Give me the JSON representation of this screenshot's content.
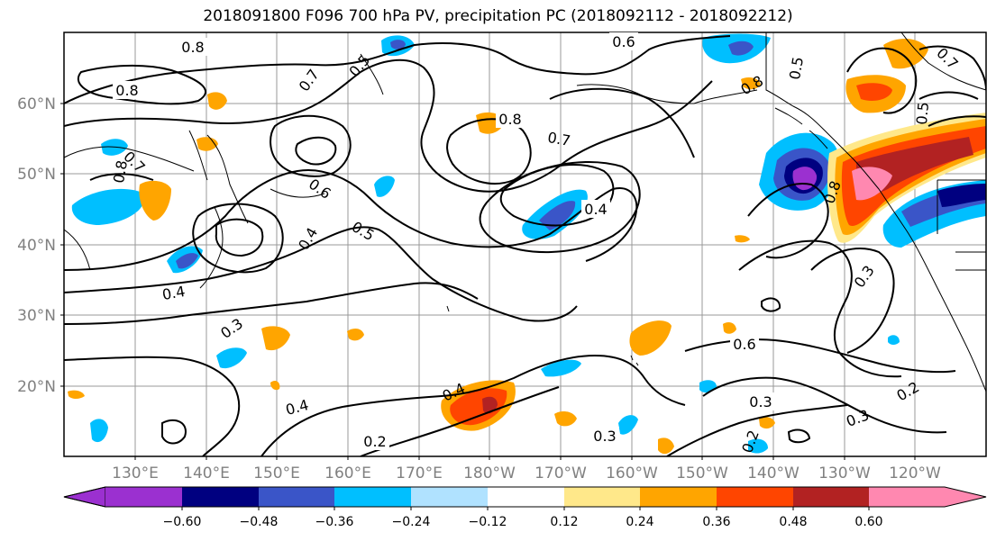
{
  "title": "2018091800 F096 700 hPa PV, precipitation PC (2018092112 - 2018092212)",
  "x_ticks": [
    "130°E",
    "140°E",
    "150°E",
    "160°E",
    "170°E",
    "180°W",
    "170°W",
    "160°W",
    "150°W",
    "140°W",
    "130°W",
    "120°W"
  ],
  "y_ticks": [
    "60°N",
    "50°N",
    "40°N",
    "30°N",
    "20°N"
  ],
  "contour_labels": [
    "0.8",
    "0.8",
    "0.7",
    "0.5",
    "0.6",
    "0.8",
    "0.7",
    "0.7",
    "0.6",
    "0.5",
    "0.4",
    "0.4",
    "0.4",
    "0.3",
    "0.4",
    "0.2",
    "0.4",
    "0.3",
    "0.6",
    "0.3",
    "0.2",
    "0.3",
    "0.8",
    "0.3",
    "0.5",
    "0.8",
    "0.2",
    "0.5",
    "0.7",
    "0.8"
  ],
  "colorbar": {
    "labels": [
      "−0.60",
      "−0.48",
      "−0.36",
      "−0.24",
      "−0.12",
      "0.12",
      "0.24",
      "0.36",
      "0.48",
      "0.60"
    ],
    "colors": [
      "#9b30d0",
      "#000080",
      "#3a55c8",
      "#00bfff",
      "#b0e2ff",
      "#ffffff",
      "#ffe88a",
      "#ffa500",
      "#ff4500",
      "#b22222",
      "#ff88b0"
    ]
  },
  "colors": {
    "neg_strong": "#9b30d0",
    "neg_dark": "#000080",
    "neg_mid": "#3a55c8",
    "neg_light": "#00bfff",
    "neg_pale": "#b0e2ff",
    "pos_pale": "#ffe88a",
    "pos_light": "#ffa500",
    "pos_mid": "#ff4500",
    "pos_dark": "#b22222",
    "pos_strong": "#ff88b0"
  }
}
